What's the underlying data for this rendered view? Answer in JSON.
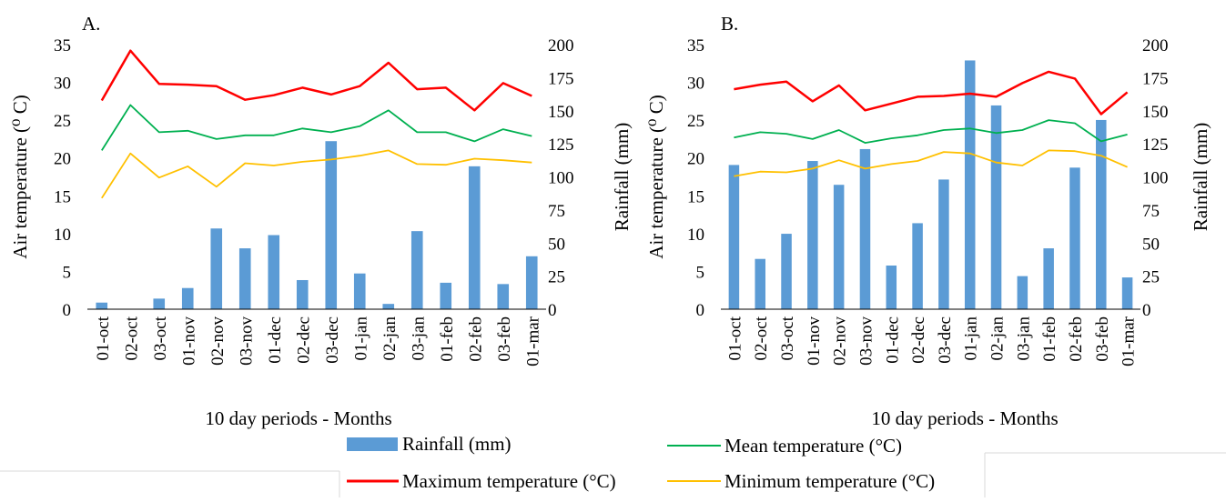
{
  "chart_data": [
    {
      "type": "bar",
      "panel_label": "A.",
      "categories": [
        "01-oct",
        "02-oct",
        "03-oct",
        "01-nov",
        "02-nov",
        "03-nov",
        "01-dec",
        "02-dec",
        "03-dec",
        "01-jan",
        "02-jan",
        "03-jan",
        "01-feb",
        "02-feb",
        "03-feb",
        "01-mar"
      ],
      "xlabel": "10 day periods - Months",
      "ylabel": "Air temperature (⁰ C)",
      "y2label": "Rainfall (mm)",
      "ylim": [
        0,
        35
      ],
      "yticks": [
        0,
        5,
        10,
        15,
        20,
        25,
        30,
        35
      ],
      "y2lim": [
        0,
        200
      ],
      "y2ticks": [
        0,
        25,
        50,
        75,
        100,
        125,
        150,
        175,
        200
      ],
      "series": [
        {
          "name": "Rainfall (mm)",
          "kind": "bar",
          "axis": "right",
          "color": "#5B9BD5",
          "values": [
            5,
            0,
            8,
            16,
            61,
            46,
            56,
            22,
            127,
            27,
            4,
            59,
            20,
            108,
            19,
            40
          ]
        },
        {
          "name": "Maximum temperature (°C)",
          "kind": "line",
          "axis": "left",
          "color": "#FF0000",
          "values": [
            27.6,
            34.2,
            29.8,
            29.7,
            29.5,
            27.7,
            28.3,
            29.3,
            28.4,
            29.5,
            32.6,
            29.1,
            29.3,
            26.3,
            29.9,
            28.2
          ]
        },
        {
          "name": "Mean temperature (°C)",
          "kind": "line",
          "axis": "left",
          "color": "#00B050",
          "values": [
            21.0,
            27.0,
            23.4,
            23.6,
            22.5,
            23.0,
            23.0,
            23.9,
            23.4,
            24.2,
            26.3,
            23.4,
            23.4,
            22.2,
            23.8,
            22.9
          ]
        },
        {
          "name": "Minimum temperature (°C)",
          "kind": "line",
          "axis": "left",
          "color": "#FFC000",
          "values": [
            14.7,
            20.6,
            17.4,
            18.9,
            16.2,
            19.3,
            19.0,
            19.5,
            19.8,
            20.3,
            21.0,
            19.2,
            19.1,
            19.9,
            19.7,
            19.4
          ]
        }
      ]
    },
    {
      "type": "bar",
      "panel_label": "B.",
      "categories": [
        "01-oct",
        "02-oct",
        "03-oct",
        "01-nov",
        "02-nov",
        "03-nov",
        "01-dec",
        "02-dec",
        "03-dec",
        "01-jan",
        "02-jan",
        "03-jan",
        "01-feb",
        "02-feb",
        "03-feb",
        "01-mar"
      ],
      "xlabel": "10 day periods - Months",
      "ylabel": "Air temperature (⁰ C)",
      "y2label": "Rainfall (mm)",
      "ylim": [
        0,
        35
      ],
      "yticks": [
        0,
        5,
        10,
        15,
        20,
        25,
        30,
        35
      ],
      "y2lim": [
        0,
        200
      ],
      "y2ticks": [
        0,
        25,
        50,
        75,
        100,
        125,
        150,
        175,
        200
      ],
      "series": [
        {
          "name": "Rainfall (mm)",
          "kind": "bar",
          "axis": "right",
          "color": "#5B9BD5",
          "values": [
            109,
            38,
            57,
            112,
            94,
            121,
            33,
            65,
            98,
            188,
            154,
            25,
            46,
            107,
            143,
            24
          ]
        },
        {
          "name": "Maximum temperature (°C)",
          "kind": "line",
          "axis": "left",
          "color": "#FF0000",
          "values": [
            29.1,
            29.7,
            30.1,
            27.5,
            29.6,
            26.3,
            27.2,
            28.1,
            28.2,
            28.5,
            28.1,
            29.9,
            31.4,
            30.5,
            25.8,
            28.7
          ]
        },
        {
          "name": "Mean temperature (°C)",
          "kind": "line",
          "axis": "left",
          "color": "#00B050",
          "values": [
            22.7,
            23.4,
            23.2,
            22.5,
            23.7,
            22.0,
            22.6,
            23.0,
            23.7,
            23.9,
            23.3,
            23.7,
            25.0,
            24.6,
            22.2,
            23.1
          ]
        },
        {
          "name": "Minimum temperature (°C)",
          "kind": "line",
          "axis": "left",
          "color": "#FFC000",
          "values": [
            17.6,
            18.2,
            18.1,
            18.6,
            19.7,
            18.6,
            19.2,
            19.6,
            20.8,
            20.6,
            19.4,
            19.0,
            21.0,
            20.9,
            20.3,
            18.8
          ]
        }
      ]
    }
  ],
  "legend": {
    "items": [
      {
        "label": "Rainfall (mm)",
        "kind": "bar",
        "color": "#5B9BD5"
      },
      {
        "label": "Mean temperature (°C)",
        "kind": "line",
        "color": "#00B050"
      },
      {
        "label": "Maximum temperature (°C)",
        "kind": "line",
        "color": "#FF0000"
      },
      {
        "label": "Minimum temperature (°C)",
        "kind": "line",
        "color": "#FFC000"
      }
    ]
  }
}
